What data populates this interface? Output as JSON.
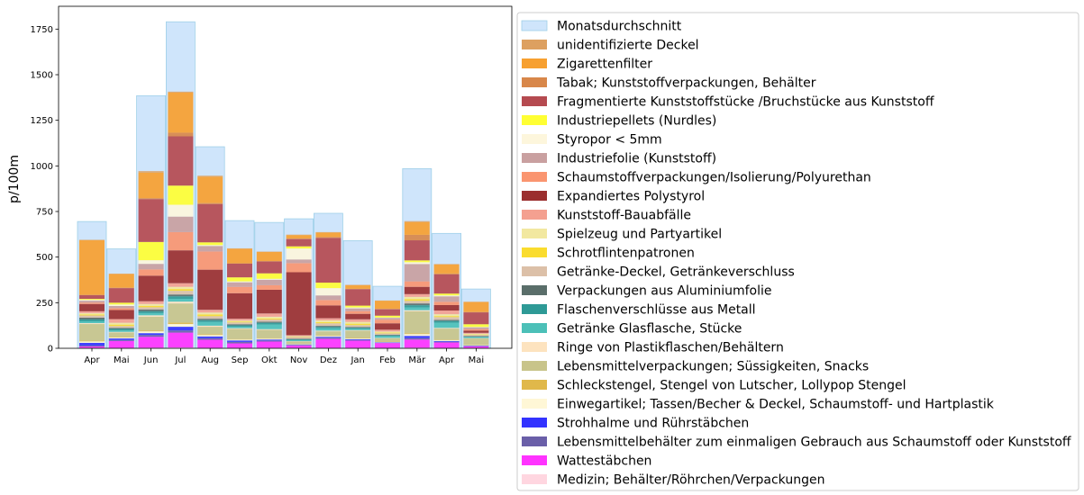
{
  "chart_data": {
    "type": "bar",
    "stacked": true,
    "ylabel": "p/100m",
    "ylim": [
      0,
      1875
    ],
    "yticks": [
      0,
      250,
      500,
      750,
      1000,
      1250,
      1500,
      1750
    ],
    "grid": false,
    "legend_position": "right",
    "categories": [
      "Apr",
      "Mai",
      "Jun",
      "Jul",
      "Aug",
      "Sep",
      "Okt",
      "Nov",
      "Dez",
      "Jan",
      "Feb",
      "Mär",
      "Apr",
      "Mai"
    ],
    "monthly_average": {
      "name": "Monatsdurchschnitt",
      "color": "#cfe5fb",
      "values": [
        695,
        545,
        1385,
        1790,
        1105,
        700,
        690,
        710,
        740,
        590,
        340,
        985,
        630,
        325
      ]
    },
    "series": [
      {
        "name": "Medizin; Behälter/Röhrchen/Verpackungen",
        "color": "#ffd6e0",
        "values": [
          2,
          2,
          3,
          4,
          2,
          2,
          2,
          1,
          2,
          2,
          1,
          3,
          2,
          1
        ]
      },
      {
        "name": "Wattestäbchen",
        "color": "#ff33ff",
        "values": [
          8,
          38,
          60,
          82,
          45,
          25,
          35,
          15,
          50,
          40,
          28,
          45,
          30,
          10
        ]
      },
      {
        "name": "Lebensmittelbehälter zum einmaligen Gebrauch aus Schaumstoff oder Kunststoff",
        "color": "#6a5fa8",
        "values": [
          5,
          6,
          10,
          12,
          8,
          8,
          6,
          3,
          6,
          4,
          2,
          8,
          4,
          2
        ]
      },
      {
        "name": "Strohhalme und Rührstäbchen",
        "color": "#3333ff",
        "values": [
          15,
          8,
          10,
          20,
          10,
          8,
          5,
          2,
          5,
          4,
          2,
          12,
          4,
          2
        ]
      },
      {
        "name": "Einwegartikel; Tassen/Becher & Deckel, Schaumstoff- und Hartplastik",
        "color": "#fff7d6",
        "values": [
          8,
          5,
          10,
          15,
          8,
          5,
          5,
          2,
          5,
          4,
          2,
          10,
          5,
          2
        ]
      },
      {
        "name": "Schleckstengel, Stengel von Lutscher, Lollypop Stengel",
        "color": "#e0b84a",
        "values": [
          5,
          3,
          5,
          8,
          5,
          3,
          3,
          2,
          3,
          3,
          2,
          5,
          3,
          2
        ]
      },
      {
        "name": "Lebensmittelverpackungen; Süssigkeiten, Snacks",
        "color": "#c8c48a",
        "values": [
          90,
          25,
          75,
          105,
          40,
          55,
          45,
          12,
          22,
          40,
          18,
          120,
          60,
          35
        ]
      },
      {
        "name": "Ringe von Plastikflaschen/Behältern",
        "color": "#fde3bf",
        "values": [
          5,
          3,
          8,
          10,
          6,
          4,
          4,
          2,
          4,
          3,
          2,
          6,
          4,
          2
        ]
      },
      {
        "name": "Getränke Glasflasche, Stücke",
        "color": "#4cc0b8",
        "values": [
          10,
          8,
          12,
          15,
          20,
          8,
          25,
          5,
          12,
          6,
          10,
          15,
          28,
          5
        ]
      },
      {
        "name": "Flaschenverschlüsse aus Metall",
        "color": "#2e9a96",
        "values": [
          10,
          8,
          10,
          14,
          10,
          8,
          10,
          5,
          8,
          6,
          4,
          12,
          10,
          3
        ]
      },
      {
        "name": "Verpackungen aus Aluminiumfolie",
        "color": "#5a6e6a",
        "values": [
          10,
          6,
          10,
          10,
          8,
          6,
          6,
          3,
          6,
          5,
          3,
          10,
          6,
          3
        ]
      },
      {
        "name": "Getränke-Deckel, Getränkeverschluss",
        "color": "#dcc0a8",
        "values": [
          12,
          10,
          12,
          20,
          14,
          10,
          12,
          10,
          14,
          10,
          8,
          14,
          15,
          6
        ]
      },
      {
        "name": "Schrotflintenpatronen",
        "color": "#fadc2e",
        "values": [
          5,
          8,
          8,
          10,
          10,
          5,
          5,
          2,
          6,
          8,
          4,
          10,
          6,
          3
        ]
      },
      {
        "name": "Spielzeug und Partyartikel",
        "color": "#f2e8a0",
        "values": [
          8,
          10,
          10,
          12,
          10,
          5,
          10,
          3,
          10,
          10,
          6,
          12,
          10,
          4
        ]
      },
      {
        "name": "Kunststoff-Bauabfälle",
        "color": "#f4a090",
        "values": [
          10,
          20,
          15,
          20,
          15,
          10,
          18,
          5,
          12,
          14,
          10,
          15,
          20,
          5
        ]
      },
      {
        "name": "Expandiertes Polystyrol",
        "color": "#9b2f2f",
        "values": [
          40,
          50,
          140,
          180,
          220,
          140,
          130,
          345,
          70,
          30,
          35,
          40,
          30,
          12
        ]
      },
      {
        "name": "Schaumstoffverpackungen/Isolierung/Polyurethan",
        "color": "#fa9570",
        "values": [
          8,
          10,
          35,
          100,
          100,
          35,
          25,
          50,
          30,
          15,
          20,
          30,
          18,
          8
        ]
      },
      {
        "name": "Industriefolie (Kunststoff)",
        "color": "#c9a0a0",
        "values": [
          10,
          12,
          30,
          85,
          30,
          25,
          30,
          20,
          25,
          15,
          10,
          95,
          30,
          10
        ]
      },
      {
        "name": "Styropor < 5mm",
        "color": "#fdf6dc",
        "values": [
          5,
          8,
          20,
          65,
          5,
          5,
          5,
          60,
          40,
          5,
          2,
          10,
          5,
          2
        ]
      },
      {
        "name": "Industriepellets (Nurdles)",
        "color": "#ffff33",
        "values": [
          5,
          10,
          100,
          105,
          15,
          22,
          30,
          12,
          30,
          10,
          10,
          10,
          10,
          15
        ]
      },
      {
        "name": "Fragmentierte Kunststoffstücke /Bruchstücke aus Kunststoff",
        "color": "#b54a50",
        "values": [
          20,
          80,
          235,
          270,
          210,
          75,
          65,
          40,
          245,
          90,
          35,
          110,
          105,
          65
        ]
      },
      {
        "name": "Tabak; Kunststoffverpackungen, Behälter",
        "color": "#d8874a",
        "values": [
          2,
          2,
          5,
          20,
          5,
          2,
          2,
          2,
          5,
          2,
          2,
          30,
          5,
          2
        ]
      },
      {
        "name": "Zigarettenfilter",
        "color": "#f7a030",
        "values": [
          300,
          75,
          140,
          220,
          145,
          80,
          50,
          20,
          25,
          20,
          45,
          70,
          50,
          55
        ]
      },
      {
        "name": "unidentifizierte Deckel",
        "color": "#dda060",
        "values": [
          2,
          2,
          8,
          5,
          5,
          2,
          2,
          2,
          2,
          2,
          1,
          5,
          2,
          1
        ]
      }
    ]
  }
}
